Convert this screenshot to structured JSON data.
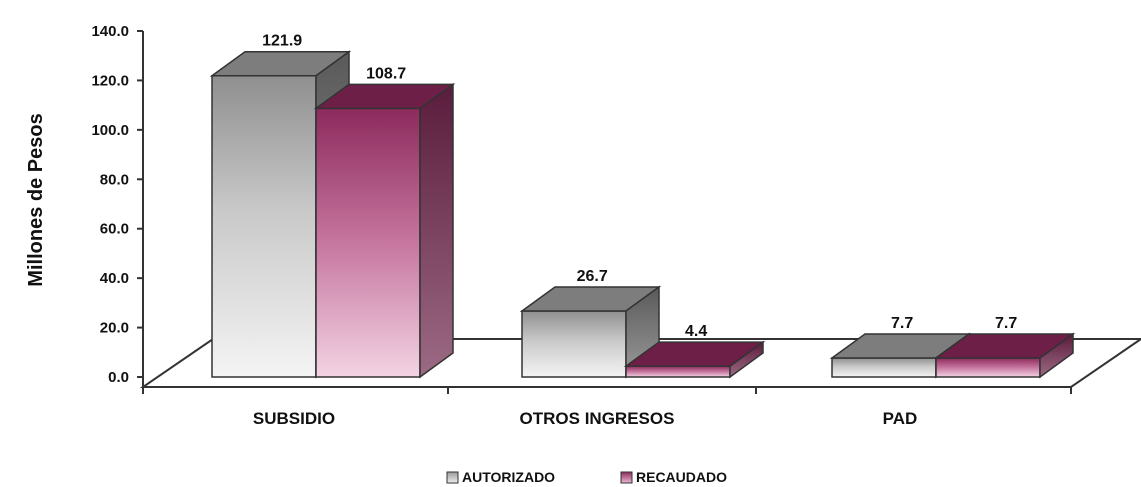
{
  "chart_data": {
    "type": "bar",
    "title": "",
    "xlabel": "",
    "ylabel": "Millones de Pesos",
    "ylim": [
      0,
      140
    ],
    "y_ticks": [
      "0.0",
      "20.0",
      "40.0",
      "60.0",
      "80.0",
      "100.0",
      "120.0",
      "140.0"
    ],
    "categories": [
      "SUBSIDIO",
      "OTROS INGRESOS",
      "PAD"
    ],
    "series": [
      {
        "name": "AUTORIZADO",
        "values": [
          121.9,
          26.7,
          7.7
        ],
        "labels": [
          "121.9",
          "26.7",
          "7.7"
        ],
        "color": "#9a9a9a"
      },
      {
        "name": "RECAUDADO",
        "values": [
          108.7,
          4.4,
          7.7
        ],
        "labels": [
          "108.7",
          "4.4",
          "7.7"
        ],
        "color": "#8e2a5e"
      }
    ],
    "legend_position": "bottom",
    "grid": false,
    "three_d": true
  }
}
